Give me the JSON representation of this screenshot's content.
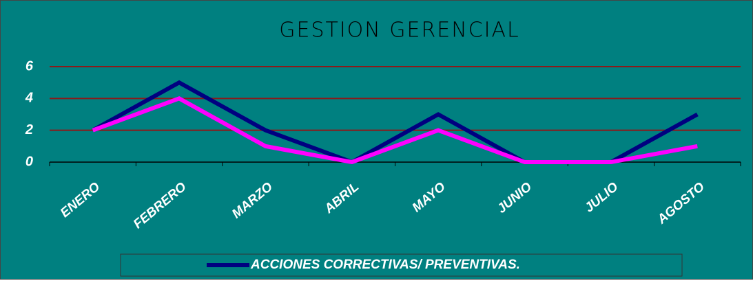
{
  "chart_data": {
    "type": "line",
    "title": "GESTION GERENCIAL",
    "categories": [
      "ENERO",
      "FEBRERO",
      "MARZO",
      "ABRIL",
      "MAYO",
      "JUNIO",
      "JULIO",
      "AGOSTO"
    ],
    "series": [
      {
        "name": "ACCIONES CORRECTIVAS/ PREVENTIVAS.",
        "color": "#000080",
        "values": [
          2,
          5,
          2,
          0,
          3,
          0,
          0,
          3
        ]
      },
      {
        "color": "#ff00ff",
        "values": [
          2,
          4,
          1,
          0,
          2,
          0,
          0,
          1
        ]
      }
    ],
    "ylim": [
      0,
      6
    ],
    "yticks": [
      0,
      2,
      4,
      6
    ],
    "grid": true,
    "grid_color": "#8b1a1a",
    "legend": "bottom",
    "background": "#008080"
  }
}
